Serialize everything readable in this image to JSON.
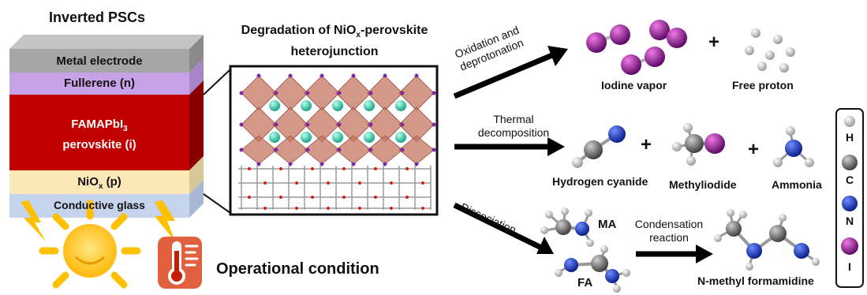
{
  "stack": {
    "title": "Inverted PSCs",
    "layers": [
      {
        "label": "Metal electrode"
      },
      {
        "label": "Fullerene (n)"
      },
      {
        "label_line1": "FAMAPbI",
        "label_sub": "3",
        "label_line2": "perovskite (i)"
      },
      {
        "label": "NiO",
        "label_sub": "x",
        "label_suffix": " (p)"
      },
      {
        "label": "Conductive glass"
      }
    ],
    "colors": {
      "metal": "#a6a6a6",
      "fullerene": "#c8a2e6",
      "perovskite": "#c00000",
      "nio": "#fae8b8",
      "glass": "#c5d3ec"
    }
  },
  "hetero": {
    "title_pre": "Degradation of NiO",
    "title_sub": "x",
    "title_post": "-perovskite",
    "title_line2": "heterojunction"
  },
  "operational": "Operational condition",
  "pathways": {
    "p1": {
      "line1": "Oxidation and",
      "line2": "deprotonation"
    },
    "p2": {
      "line1": "Thermal",
      "line2": "decomposition"
    },
    "p3": {
      "label": "Dissociation"
    },
    "p4": {
      "line1": "Condensation",
      "line2": "reaction"
    }
  },
  "products": {
    "iodine": "Iodine vapor",
    "proton": "Free proton",
    "hcn": "Hydrogen cyanide",
    "mei": "Methyliodide",
    "nh3": "Ammonia",
    "ma": "MA",
    "fa": "FA",
    "nmf": "N-methyl formamidine",
    "plus": "+"
  },
  "legend": {
    "items": [
      {
        "label": "H",
        "color": "#e6e6e6"
      },
      {
        "label": "C",
        "color": "#7f7f7f"
      },
      {
        "label": "N",
        "color": "#1a3ec8"
      },
      {
        "label": "I",
        "color": "#9b1aa0"
      }
    ]
  }
}
